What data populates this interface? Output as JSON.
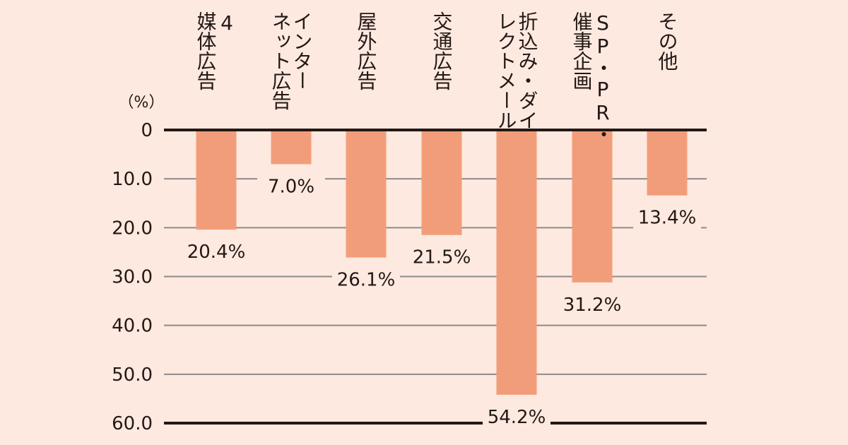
{
  "chart_data": {
    "type": "bar",
    "orientation": "vertical-downward",
    "unit_label": "（%）",
    "categories": [
      [
        "4",
        "媒体広告"
      ],
      [
        "インター",
        "ネット広告"
      ],
      [
        "屋外広告"
      ],
      [
        "交通広告"
      ],
      [
        "折込み・ダイ",
        "レクトメール"
      ],
      [
        "SP・PR・",
        "催事企画"
      ],
      [
        "その他"
      ]
    ],
    "values": [
      20.4,
      7.0,
      26.1,
      21.5,
      54.2,
      31.2,
      13.4
    ],
    "value_labels": [
      "20.4%",
      "7.0%",
      "26.1%",
      "21.5%",
      "54.2%",
      "31.2%",
      "13.4%"
    ],
    "y_ticks": [
      "0",
      "10.0",
      "20.0",
      "30.0",
      "40.0",
      "50.0",
      "60.0"
    ],
    "y_tick_values": [
      0,
      10,
      20,
      30,
      40,
      50,
      60
    ],
    "ylim": [
      0,
      60
    ],
    "grid": true,
    "colors": {
      "background": "#fde9df",
      "bar": "#f29d7a",
      "grid": "#8c8c8c",
      "axis": "#231815",
      "text": "#231815"
    }
  }
}
